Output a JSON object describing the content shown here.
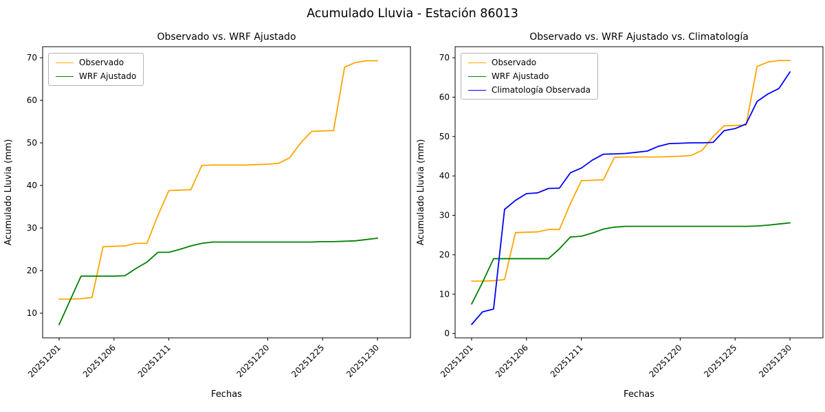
{
  "figure": {
    "title": "Acumulado Lluvia - Estación 86013"
  },
  "chart_data": [
    {
      "type": "line",
      "title": "Observado vs. WRF Ajustado",
      "xlabel": "Fechas",
      "ylabel": "Acumulado Lluvia (mm)",
      "legend_position": "upper left",
      "grid": false,
      "categories": [
        "20251201",
        "20251202",
        "20251203",
        "20251204",
        "20251205",
        "20251206",
        "20251207",
        "20251208",
        "20251209",
        "20251210",
        "20251211",
        "20251212",
        "20251213",
        "20251214",
        "20251215",
        "20251216",
        "20251217",
        "20251218",
        "20251219",
        "20251220",
        "20251221",
        "20251222",
        "20251223",
        "20251224",
        "20251225",
        "20251226",
        "20251227",
        "20251228",
        "20251229",
        "20251230"
      ],
      "xtick_indices": [
        0,
        5,
        10,
        19,
        24,
        29
      ],
      "yticks": [
        10,
        20,
        30,
        40,
        50,
        60,
        70
      ],
      "ylim": [
        4.2,
        72.6
      ],
      "xlim": [
        -1.5,
        32
      ],
      "series": [
        {
          "name": "Observado",
          "color": "#FFA500",
          "values": [
            13.3,
            13.3,
            13.4,
            13.7,
            25.6,
            25.7,
            25.8,
            26.4,
            26.4,
            33.0,
            38.8,
            38.9,
            39.0,
            44.7,
            44.8,
            44.8,
            44.8,
            44.8,
            44.9,
            45.0,
            45.2,
            46.5,
            50.0,
            52.7,
            52.8,
            52.9,
            67.8,
            68.9,
            69.3,
            69.3
          ]
        },
        {
          "name": "WRF Ajustado",
          "color": "#008000",
          "values": [
            7.3,
            13.0,
            18.7,
            18.7,
            18.7,
            18.7,
            18.8,
            20.5,
            22.0,
            24.3,
            24.3,
            25.0,
            25.8,
            26.4,
            26.7,
            26.7,
            26.7,
            26.7,
            26.7,
            26.7,
            26.7,
            26.7,
            26.7,
            26.7,
            26.8,
            26.8,
            26.9,
            27.0,
            27.3,
            27.6
          ]
        }
      ]
    },
    {
      "type": "line",
      "title": "Observado vs. WRF Ajustado vs. Climatología",
      "xlabel": "Fechas",
      "ylabel": "Acumulado Lluvia (mm)",
      "legend_position": "upper left",
      "grid": false,
      "categories": [
        "20251201",
        "20251202",
        "20251203",
        "20251204",
        "20251205",
        "20251206",
        "20251207",
        "20251208",
        "20251209",
        "20251210",
        "20251211",
        "20251212",
        "20251213",
        "20251214",
        "20251215",
        "20251216",
        "20251217",
        "20251218",
        "20251219",
        "20251220",
        "20251221",
        "20251222",
        "20251223",
        "20251224",
        "20251225",
        "20251226",
        "20251227",
        "20251228",
        "20251229",
        "20251230"
      ],
      "xtick_indices": [
        0,
        5,
        10,
        19,
        24,
        29
      ],
      "yticks": [
        0,
        10,
        20,
        30,
        40,
        50,
        60,
        70
      ],
      "ylim": [
        -1.1,
        72.8
      ],
      "xlim": [
        -1.5,
        32
      ],
      "series": [
        {
          "name": "Observado",
          "color": "#FFA500",
          "values": [
            13.3,
            13.3,
            13.4,
            13.7,
            25.6,
            25.7,
            25.8,
            26.4,
            26.4,
            33.0,
            38.8,
            38.9,
            39.0,
            44.7,
            44.8,
            44.8,
            44.8,
            44.8,
            44.9,
            45.0,
            45.2,
            46.5,
            50.0,
            52.7,
            52.8,
            52.9,
            67.8,
            68.9,
            69.3,
            69.3
          ]
        },
        {
          "name": "WRF Ajustado",
          "color": "#008000",
          "values": [
            7.5,
            13.0,
            19.0,
            19.0,
            19.0,
            19.0,
            19.0,
            19.0,
            21.5,
            24.5,
            24.7,
            25.5,
            26.5,
            27.0,
            27.2,
            27.2,
            27.2,
            27.2,
            27.2,
            27.2,
            27.2,
            27.2,
            27.2,
            27.2,
            27.2,
            27.2,
            27.3,
            27.5,
            27.8,
            28.1
          ]
        },
        {
          "name": "Climatología Observada",
          "color": "#0000FF",
          "values": [
            2.3,
            5.5,
            6.2,
            31.5,
            33.8,
            35.5,
            35.7,
            36.8,
            36.9,
            40.8,
            42.0,
            44.0,
            45.5,
            45.6,
            45.7,
            46.0,
            46.3,
            47.5,
            48.2,
            48.3,
            48.4,
            48.4,
            48.5,
            51.5,
            52.0,
            53.2,
            58.9,
            60.8,
            62.2,
            66.4
          ]
        }
      ]
    }
  ]
}
